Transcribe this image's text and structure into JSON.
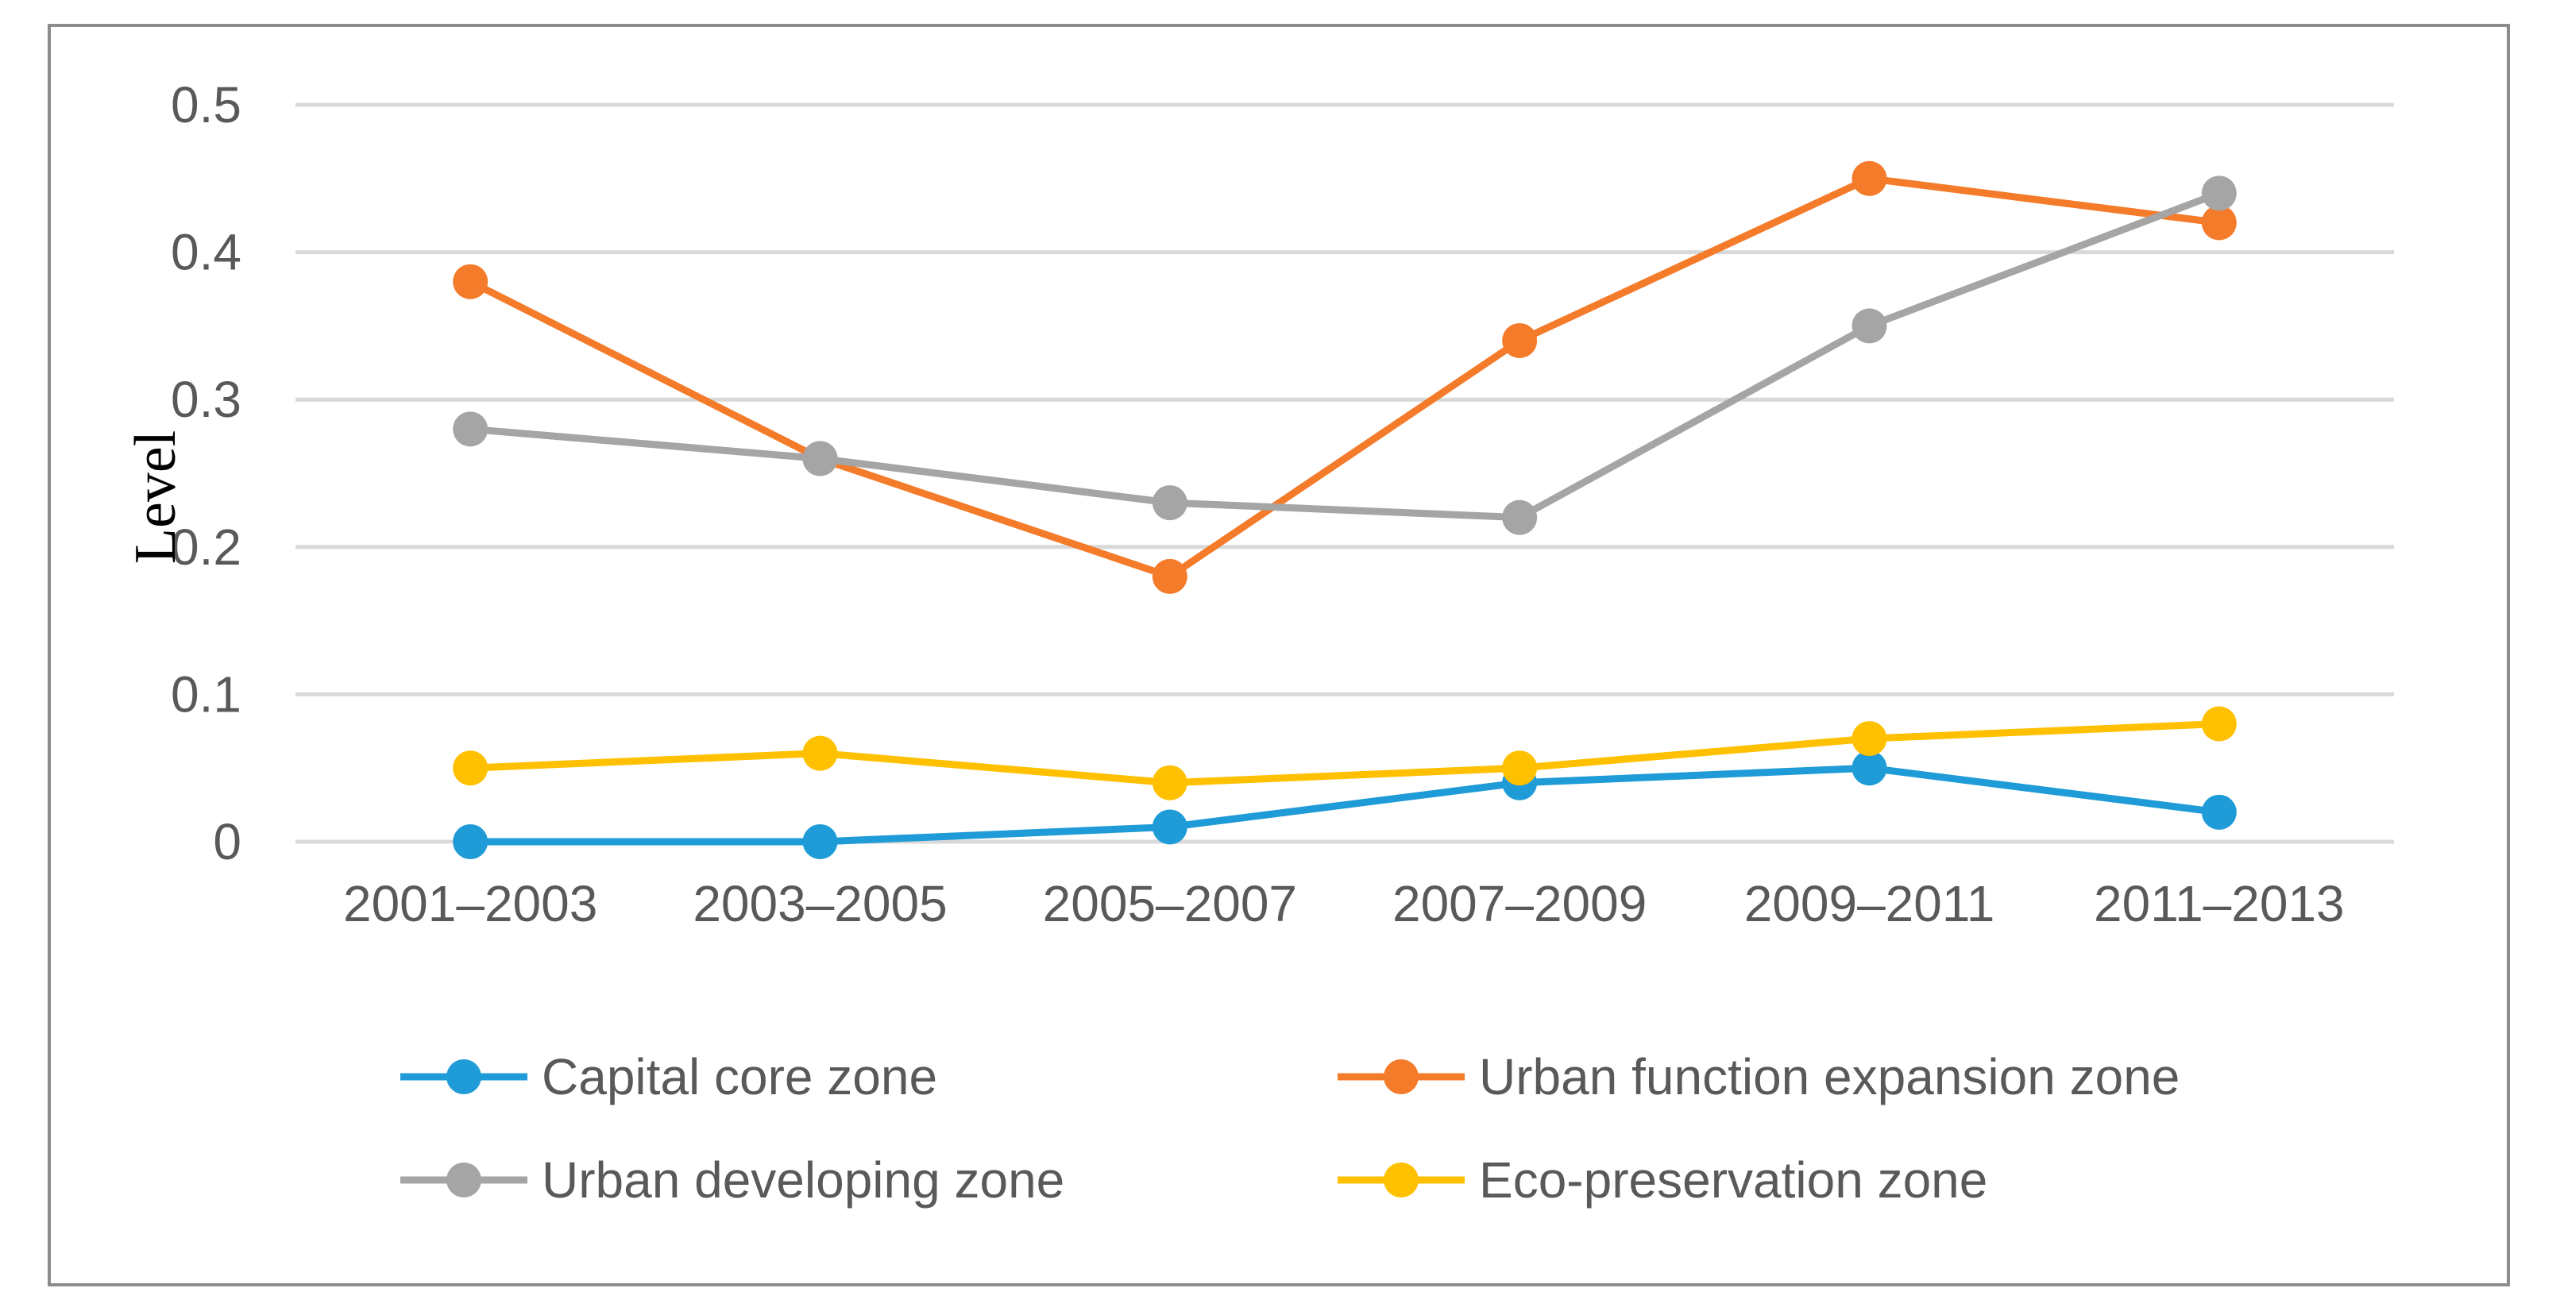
{
  "chart_data": {
    "type": "line",
    "title": "",
    "xlabel": "",
    "ylabel": "Level",
    "ylim": [
      0,
      0.5
    ],
    "yticks": [
      0,
      0.1,
      0.2,
      0.3,
      0.4,
      0.5
    ],
    "ytick_labels": [
      "0",
      "0.1",
      "0.2",
      "0.3",
      "0.4",
      "0.5"
    ],
    "grid": true,
    "legend_position": "bottom",
    "categories": [
      "2001–2003",
      "2003–2005",
      "2005–2007",
      "2007–2009",
      "2009–2011",
      "2011–2013"
    ],
    "series": [
      {
        "name": "Capital core zone",
        "color": "#1f9bd7",
        "values": [
          0,
          0,
          0.01,
          0.04,
          0.05,
          0.02
        ]
      },
      {
        "name": "Urban function expansion zone",
        "color": "#f47b2a",
        "values": [
          0.38,
          0.26,
          0.18,
          0.34,
          0.45,
          0.42
        ]
      },
      {
        "name": "Urban developing zone",
        "color": "#a5a5a5",
        "values": [
          0.28,
          0.26,
          0.23,
          0.22,
          0.35,
          0.44
        ]
      },
      {
        "name": "Eco-preservation zone",
        "color": "#ffc000",
        "values": [
          0.05,
          0.06,
          0.04,
          0.05,
          0.07,
          0.08
        ]
      }
    ]
  }
}
